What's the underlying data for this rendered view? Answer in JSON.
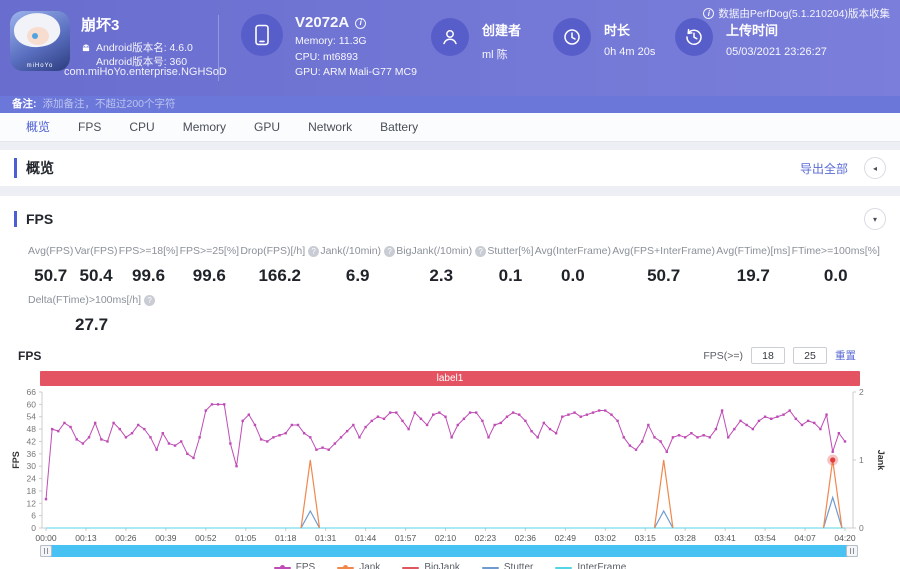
{
  "header": {
    "app": {
      "title": "崩坏3",
      "android_version": "Android版本名: 4.6.0",
      "android_build": "Android版本号: 360",
      "package": "com.miHoYo.enterprise.NGHSoD",
      "icon_caption": "miHoYo"
    },
    "device": {
      "model": "V2072A",
      "memory": "Memory: 11.3G",
      "cpu": "CPU: mt6893",
      "gpu": "GPU: ARM Mali-G77 MC9"
    },
    "creator": {
      "label": "创建者",
      "value": "ml 陈"
    },
    "duration": {
      "label": "时长",
      "value": "0h 4m 20s"
    },
    "upload": {
      "label": "上传时间",
      "value": "05/03/2021 23:26:27"
    },
    "collect_info": "数据由PerfDog(5.1.210204)版本收集"
  },
  "note_bar": {
    "label": "备注:",
    "placeholder": "添加备注，不超过200个字符"
  },
  "tabs": [
    {
      "label": "概览",
      "active": true
    },
    {
      "label": "FPS",
      "active": false
    },
    {
      "label": "CPU",
      "active": false
    },
    {
      "label": "Memory",
      "active": false
    },
    {
      "label": "GPU",
      "active": false
    },
    {
      "label": "Network",
      "active": false
    },
    {
      "label": "Battery",
      "active": false
    }
  ],
  "overview_section": {
    "title": "概览",
    "export_label": "导出全部"
  },
  "fps_section": {
    "title": "FPS",
    "chart_name": "FPS",
    "stats": [
      {
        "label": "Avg(FPS)",
        "value": "50.7",
        "help": false
      },
      {
        "label": "Var(FPS)",
        "value": "50.4",
        "help": false
      },
      {
        "label": "FPS>=18[%]",
        "value": "99.6",
        "help": false
      },
      {
        "label": "FPS>=25[%]",
        "value": "99.6",
        "help": false
      },
      {
        "label": "Drop(FPS)[/h]",
        "value": "166.2",
        "help": true
      },
      {
        "label": "Jank(/10min)",
        "value": "6.9",
        "help": true
      },
      {
        "label": "BigJank(/10min)",
        "value": "2.3",
        "help": true
      },
      {
        "label": "Stutter[%]",
        "value": "0.1",
        "help": false
      },
      {
        "label": "Avg(InterFrame)",
        "value": "0.0",
        "help": false
      },
      {
        "label": "Avg(FPS+InterFrame)",
        "value": "50.7",
        "help": false
      },
      {
        "label": "Avg(FTime)[ms]",
        "value": "19.7",
        "help": false
      },
      {
        "label": "FTime>=100ms[%]",
        "value": "0.0",
        "help": false
      }
    ],
    "stats_row2": [
      {
        "label": "Delta(FTime)>100ms[/h]",
        "value": "27.7",
        "help": true
      }
    ],
    "threshold": {
      "label": "FPS(>=)",
      "inputs": [
        "18",
        "25"
      ],
      "reset_label": "重置"
    }
  },
  "icons": {
    "collapse_left": "◂",
    "collapse_down": "▾",
    "info": "i",
    "help": "?"
  },
  "colors": {
    "accent_blue": "#4c5ed5",
    "link_blue": "#5b6bd5",
    "label1_red": "#e45362",
    "scrollbar_blue": "#47c2f2",
    "header_purple": "#6e72d2"
  },
  "chart_data": {
    "type": "line",
    "region_label": {
      "text": "label1",
      "color": "#e45362"
    },
    "x_ticks": [
      "00:00",
      "00:13",
      "00:26",
      "00:39",
      "00:52",
      "01:05",
      "01:18",
      "01:31",
      "01:44",
      "01:57",
      "02:10",
      "02:23",
      "02:36",
      "02:49",
      "03:02",
      "03:15",
      "03:28",
      "03:41",
      "03:54",
      "04:07",
      "04:20"
    ],
    "x_range_seconds": [
      0,
      260
    ],
    "left_axis": {
      "label": "FPS",
      "min": 0,
      "max": 66,
      "tick_step": 6
    },
    "right_axis": {
      "label": "Jank",
      "min": 0,
      "max": 2,
      "tick_step": 1
    },
    "grid": false,
    "legend_position": "bottom",
    "series": [
      {
        "name": "FPS",
        "color": "#bf4cb5",
        "axis": "left",
        "marker": "square",
        "t_step": 2,
        "values": [
          14,
          48,
          47,
          51,
          49,
          43,
          41,
          44,
          51,
          43,
          42,
          51,
          48,
          44,
          46,
          50,
          48,
          44,
          38,
          46,
          41,
          40,
          42,
          36,
          34,
          44,
          57,
          60,
          60,
          60,
          41,
          30,
          52,
          55,
          50,
          43,
          42,
          44,
          45,
          46,
          50,
          50,
          46,
          44,
          38,
          39,
          38,
          41,
          44,
          47,
          50,
          44,
          49,
          52,
          54,
          53,
          56,
          56,
          52,
          48,
          56,
          53,
          50,
          55,
          56,
          54,
          44,
          50,
          53,
          56,
          56,
          52,
          44,
          50,
          51,
          54,
          56,
          55,
          52,
          47,
          44,
          51,
          48,
          46,
          54,
          55,
          56,
          54,
          55,
          56,
          57,
          57,
          55,
          52,
          44,
          40,
          38,
          42,
          50,
          44,
          42,
          37,
          44,
          45,
          44,
          46,
          44,
          45,
          44,
          48,
          57,
          44,
          48,
          52,
          50,
          48,
          52,
          54,
          53,
          54,
          55,
          57,
          53,
          50,
          52,
          51,
          48,
          55,
          37,
          46,
          42
        ]
      },
      {
        "name": "Jank",
        "color": "#f0884e",
        "axis": "right",
        "baseline": 0,
        "style": "dashed",
        "spikes": [
          {
            "t": 86,
            "value": 1
          },
          {
            "t": 201,
            "value": 1
          },
          {
            "t": 256,
            "value": 1
          }
        ]
      },
      {
        "name": "BigJank",
        "color": "#e0565e",
        "axis": "right",
        "baseline": 0,
        "style": "dashed",
        "spikes": []
      },
      {
        "name": "Stutter",
        "color": "#6f9ad0",
        "axis": "right",
        "baseline": 0,
        "style": "solid",
        "spikes": [
          {
            "t": 86,
            "value": 0.25
          },
          {
            "t": 201,
            "value": 0.25
          },
          {
            "t": 256,
            "value": 0.45
          }
        ]
      },
      {
        "name": "InterFrame",
        "color": "#55d4e4",
        "axis": "right",
        "baseline": 0,
        "style": "solid",
        "spikes": []
      }
    ],
    "highlight_point": {
      "series": "Jank",
      "t": 256,
      "value": 1
    }
  }
}
